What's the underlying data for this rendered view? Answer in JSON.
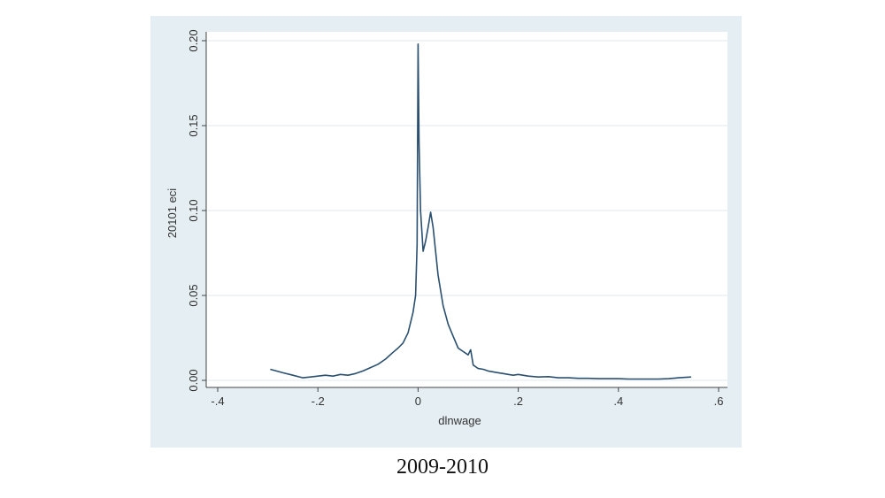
{
  "caption": "2009-2010",
  "colors": {
    "panel_bg": "#e5eef2",
    "plot_bg": "#ffffff",
    "line": "#2b4f6e",
    "grid": "#e2e8ec"
  },
  "chart_data": {
    "type": "line",
    "xlabel": "dlnwage",
    "ylabel": "20101 eci",
    "xlim": [
      -0.4,
      0.6
    ],
    "ylim": [
      0,
      0.2
    ],
    "xticks": [
      -0.4,
      -0.2,
      0,
      0.2,
      0.4,
      0.6
    ],
    "xtick_labels": [
      "-.4",
      "-.2",
      "0",
      ".2",
      ".4",
      ".6"
    ],
    "yticks": [
      0,
      0.05,
      0.1,
      0.15,
      0.2
    ],
    "ytick_labels": [
      "0.00",
      "0.05",
      "0.10",
      "0.15",
      "0.20"
    ],
    "grid": true,
    "series": [
      {
        "x": [
          -0.295,
          -0.27,
          -0.25,
          -0.23,
          -0.215,
          -0.2,
          -0.185,
          -0.17,
          -0.155,
          -0.14,
          -0.125,
          -0.11,
          -0.095,
          -0.08,
          -0.065,
          -0.05,
          -0.04,
          -0.03,
          -0.02,
          -0.01,
          -0.005,
          -0.002,
          0.0,
          0.002,
          0.005,
          0.01,
          0.015,
          0.02,
          0.025,
          0.03,
          0.04,
          0.05,
          0.06,
          0.07,
          0.08,
          0.09,
          0.1,
          0.105,
          0.11,
          0.12,
          0.13,
          0.14,
          0.15,
          0.16,
          0.17,
          0.18,
          0.19,
          0.2,
          0.22,
          0.24,
          0.26,
          0.28,
          0.3,
          0.32,
          0.34,
          0.36,
          0.38,
          0.4,
          0.42,
          0.44,
          0.46,
          0.48,
          0.5,
          0.52,
          0.545
        ],
        "y": [
          0.0065,
          0.0045,
          0.003,
          0.0015,
          0.002,
          0.0025,
          0.003,
          0.0025,
          0.0035,
          0.003,
          0.004,
          0.0055,
          0.0075,
          0.0095,
          0.0125,
          0.0165,
          0.019,
          0.022,
          0.028,
          0.04,
          0.05,
          0.08,
          0.198,
          0.14,
          0.1,
          0.076,
          0.082,
          0.09,
          0.099,
          0.09,
          0.062,
          0.044,
          0.033,
          0.026,
          0.019,
          0.017,
          0.015,
          0.018,
          0.009,
          0.007,
          0.0065,
          0.0055,
          0.005,
          0.0045,
          0.004,
          0.0035,
          0.003,
          0.0035,
          0.0025,
          0.002,
          0.0022,
          0.0015,
          0.0015,
          0.0012,
          0.0012,
          0.001,
          0.001,
          0.001,
          0.0008,
          0.0008,
          0.0008,
          0.0008,
          0.001,
          0.0015,
          0.002
        ]
      }
    ]
  }
}
